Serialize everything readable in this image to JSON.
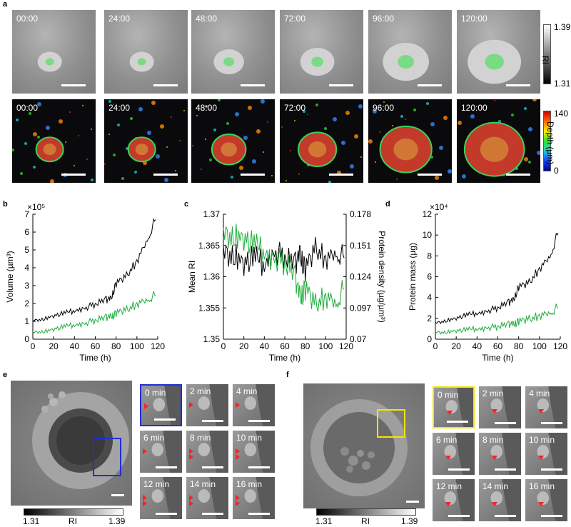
{
  "panel_labels": {
    "a": "a",
    "b": "b",
    "c": "c",
    "d": "d",
    "e": "e",
    "f": "f"
  },
  "panel_a": {
    "timestamps": [
      "00:00",
      "24:00",
      "48:00",
      "72:00",
      "96:00",
      "120:00"
    ],
    "ri_colorbar": {
      "max": "1.39",
      "min": "1.31",
      "label": "RI"
    },
    "depth_colorbar": {
      "max": "140",
      "min": "0",
      "label": "Depth (µm)"
    }
  },
  "chart_data": [
    {
      "type": "line",
      "id": "b",
      "xlabel": "Time (h)",
      "ylabel": "Volume (µm³)",
      "exponent_label": "×10⁵",
      "xlim": [
        0,
        120
      ],
      "ylim": [
        0,
        7
      ],
      "xticks": [
        0,
        20,
        40,
        60,
        80,
        100,
        120
      ],
      "yticks": [
        0,
        1,
        2,
        3,
        4,
        5,
        6,
        7
      ],
      "x": [
        0,
        10,
        20,
        30,
        40,
        50,
        60,
        70,
        75,
        80,
        90,
        100,
        110,
        118
      ],
      "series": [
        {
          "name": "black",
          "color": "#000000",
          "values": [
            1.0,
            1.15,
            1.3,
            1.45,
            1.6,
            1.75,
            1.95,
            2.2,
            2.3,
            3.1,
            3.6,
            4.4,
            5.6,
            6.7
          ]
        },
        {
          "name": "green",
          "color": "#1fae3c",
          "values": [
            0.35,
            0.45,
            0.55,
            0.7,
            0.8,
            0.9,
            1.05,
            1.2,
            1.3,
            1.45,
            1.7,
            2.0,
            2.25,
            2.45
          ]
        }
      ]
    },
    {
      "type": "line",
      "id": "c",
      "xlabel": "Time (h)",
      "ylabel": "Mean RI",
      "ylabel_right": "Protein density (µg/µm³)",
      "xlim": [
        0,
        120
      ],
      "ylim": [
        1.35,
        1.37
      ],
      "ylim_right": [
        0.07,
        0.178
      ],
      "xticks": [
        0,
        20,
        40,
        60,
        80,
        100,
        120
      ],
      "yticks": [
        "1.35",
        "1.355",
        "1.36",
        "1.365",
        "1.37"
      ],
      "yticks_right": [
        "0.07",
        "0.097",
        "0.124",
        "0.151",
        "0.178"
      ],
      "x": [
        0,
        10,
        20,
        30,
        40,
        50,
        60,
        70,
        75,
        80,
        90,
        100,
        110,
        118
      ],
      "series": [
        {
          "name": "black",
          "color": "#000000",
          "values": [
            1.363,
            1.364,
            1.362,
            1.363,
            1.362,
            1.364,
            1.363,
            1.362,
            1.364,
            1.361,
            1.365,
            1.363,
            1.364,
            1.363
          ]
        },
        {
          "name": "green",
          "color": "#1fae3c",
          "values": [
            1.366,
            1.367,
            1.366,
            1.365,
            1.364,
            1.363,
            1.362,
            1.36,
            1.357,
            1.358,
            1.356,
            1.357,
            1.356,
            1.358
          ]
        }
      ]
    },
    {
      "type": "line",
      "id": "d",
      "xlabel": "Time (h)",
      "ylabel": "Protein mass (µg)",
      "exponent_label": "×10⁴",
      "xlim": [
        0,
        120
      ],
      "ylim": [
        0,
        12
      ],
      "xticks": [
        0,
        20,
        40,
        60,
        80,
        100,
        120
      ],
      "yticks": [
        0,
        2,
        4,
        6,
        8,
        10,
        12
      ],
      "x": [
        0,
        10,
        20,
        30,
        40,
        50,
        60,
        70,
        75,
        80,
        90,
        100,
        110,
        118
      ],
      "series": [
        {
          "name": "black",
          "color": "#000000",
          "values": [
            1.5,
            1.8,
            2.0,
            2.3,
            2.5,
            2.7,
            3.0,
            3.5,
            3.8,
            5.0,
            5.5,
            6.8,
            8.0,
            10.2
          ]
        },
        {
          "name": "green",
          "color": "#1fae3c",
          "values": [
            0.6,
            0.7,
            0.8,
            0.9,
            1.0,
            1.1,
            1.2,
            1.4,
            1.5,
            1.7,
            2.0,
            2.3,
            2.6,
            3.0
          ]
        }
      ]
    }
  ],
  "panel_e": {
    "timepoints": [
      "0 min",
      "2 min",
      "4 min",
      "6 min",
      "8 min",
      "10 min",
      "12 min",
      "14 min",
      "16 min"
    ],
    "colorbar": {
      "min": "1.31",
      "label": "RI",
      "max": "1.39"
    },
    "highlight_color": "#1f2fd6"
  },
  "panel_f": {
    "timepoints": [
      "0 min",
      "2 min",
      "4 min",
      "6 min",
      "8 min",
      "10 min",
      "12 min",
      "14 min",
      "16 min"
    ],
    "colorbar": {
      "min": "1.31",
      "label": "RI",
      "max": "1.39"
    },
    "highlight_color": "#f2e600"
  }
}
